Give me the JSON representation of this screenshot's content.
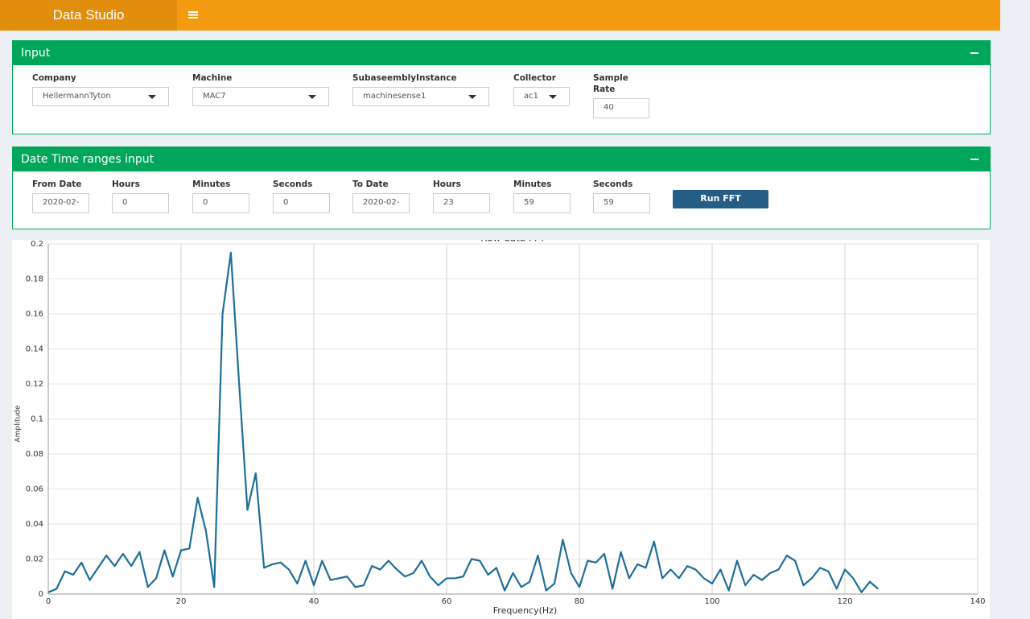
{
  "header": {
    "title": "Data Studio"
  },
  "input_panel": {
    "title": "Input",
    "selects": [
      {
        "label": "Company",
        "value": "HellermannTyton"
      },
      {
        "label": "Machine",
        "value": "MAC7"
      },
      {
        "label": "SubaseemblyInstance",
        "value": "machinesense1"
      },
      {
        "label": "Collector",
        "value": "ac1"
      }
    ],
    "text_inputs": [
      {
        "label": "Sample Rate",
        "value": "40"
      }
    ]
  },
  "datetime_panel": {
    "title": "Date Time ranges input",
    "fields": [
      {
        "label": "From Date",
        "value": "2020-02-"
      },
      {
        "label": "Hours",
        "value": "0"
      },
      {
        "label": "Minutes",
        "value": "0"
      },
      {
        "label": "Seconds",
        "value": "0"
      },
      {
        "label": "To Date",
        "value": "2020-02-"
      },
      {
        "label": "Hours",
        "value": "23"
      },
      {
        "label": "Minutes",
        "value": "59"
      },
      {
        "label": "Seconds",
        "value": "59"
      }
    ],
    "button": "Run FFT"
  },
  "chart_data": {
    "type": "line",
    "title": "Raw data FFT",
    "x_label": "Frequency(Hz)",
    "y_label": "Amplitude",
    "xlim": [
      0,
      140
    ],
    "xticks": [
      0,
      20,
      40,
      60,
      80,
      100,
      120,
      140
    ],
    "ylim": [
      0,
      0.2
    ],
    "yticks": [
      0,
      0.02,
      0.04,
      0.06,
      0.08,
      0.1,
      0.12,
      0.14,
      0.16,
      0.18,
      0.2
    ],
    "grid": true,
    "x": [
      0,
      1.25,
      2.5,
      3.75,
      5,
      6.25,
      7.5,
      8.75,
      10,
      11.25,
      12.5,
      13.75,
      15,
      16.25,
      17.5,
      18.75,
      20,
      21.25,
      22.5,
      23.75,
      25,
      26.25,
      27.5,
      28.75,
      30,
      31.25,
      32.5,
      33.75,
      35,
      36.25,
      37.5,
      38.75,
      40,
      41.25,
      42.5,
      43.75,
      45,
      46.25,
      47.5,
      48.75,
      50,
      51.25,
      52.5,
      53.75,
      55,
      56.25,
      57.5,
      58.75,
      60,
      61.25,
      62.5,
      63.75,
      65,
      66.25,
      67.5,
      68.75,
      70,
      71.25,
      72.5,
      73.75,
      75,
      76.25,
      77.5,
      78.75,
      80,
      81.25,
      82.5,
      83.75,
      85,
      86.25,
      87.5,
      88.75,
      90,
      91.25,
      92.5,
      93.75,
      95,
      96.25,
      97.5,
      98.75,
      100,
      101.25,
      102.5,
      103.75,
      105,
      106.25,
      107.5,
      108.75,
      110,
      111.25,
      112.5,
      113.75,
      115,
      116.25,
      117.5,
      118.75,
      120,
      121.25,
      122.5,
      123.75,
      125
    ],
    "series": [
      {
        "name": "Amplitude",
        "color": "#1f6f99",
        "values": [
          0.001,
          0.003,
          0.013,
          0.011,
          0.018,
          0.008,
          0.015,
          0.022,
          0.016,
          0.023,
          0.016,
          0.024,
          0.004,
          0.009,
          0.025,
          0.01,
          0.025,
          0.026,
          0.055,
          0.036,
          0.004,
          0.16,
          0.195,
          0.12,
          0.048,
          0.069,
          0.015,
          0.017,
          0.018,
          0.014,
          0.006,
          0.019,
          0.005,
          0.019,
          0.008,
          0.009,
          0.01,
          0.004,
          0.005,
          0.016,
          0.014,
          0.019,
          0.014,
          0.01,
          0.012,
          0.019,
          0.01,
          0.005,
          0.009,
          0.009,
          0.01,
          0.02,
          0.019,
          0.011,
          0.015,
          0.002,
          0.012,
          0.004,
          0.007,
          0.022,
          0.002,
          0.006,
          0.031,
          0.012,
          0.004,
          0.019,
          0.018,
          0.023,
          0.003,
          0.024,
          0.009,
          0.017,
          0.015,
          0.03,
          0.009,
          0.014,
          0.009,
          0.016,
          0.014,
          0.009,
          0.006,
          0.014,
          0.002,
          0.019,
          0.005,
          0.011,
          0.008,
          0.012,
          0.014,
          0.022,
          0.019,
          0.005,
          0.009,
          0.015,
          0.013,
          0.003,
          0.014,
          0.009,
          0.001,
          0.007,
          0.003
        ]
      }
    ]
  }
}
